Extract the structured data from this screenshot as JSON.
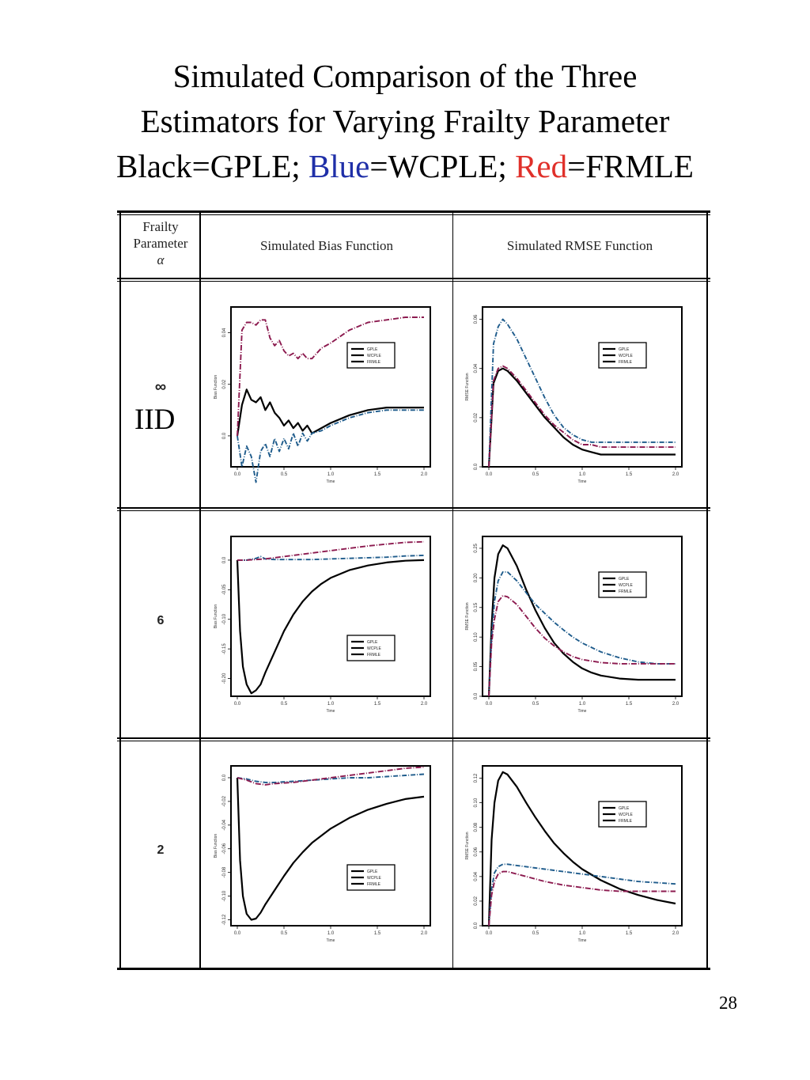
{
  "title": {
    "line1": "Simulated Comparison of the Three",
    "line2": "Estimators for Varying Frailty Parameter",
    "line3_a": "Black=GPLE; ",
    "line3_blue": "Blue",
    "line3_b": "=WCPLE; ",
    "line3_red": "Red",
    "line3_c": "=FRMLE"
  },
  "table": {
    "col1_header_l1": "Frailty",
    "col1_header_l2": "Parameter",
    "col1_header_l3": "α",
    "col2_header": "Simulated Bias Function",
    "col3_header": "Simulated RMSE Function",
    "rows": [
      {
        "label": "∞",
        "extra": "IID"
      },
      {
        "label": "6"
      },
      {
        "label": "2"
      }
    ]
  },
  "page_number": "28",
  "colors": {
    "gple": "#000000",
    "wcple": "#1f5c8c",
    "frmle": "#8c1a4f"
  },
  "chart_data": [
    {
      "type": "line",
      "panel": "bias",
      "row": "∞",
      "xlabel": "Time",
      "ylabel": "Bias Function",
      "xlim": [
        0,
        2
      ],
      "ylim": [
        -0.012,
        0.05
      ],
      "xticks": [
        "0.0",
        "0.5",
        "1.0",
        "1.5",
        "2.0"
      ],
      "yticks": [
        {
          "v": 0.0,
          "t": "0.0"
        },
        {
          "v": 0.02,
          "t": "0.02"
        },
        {
          "v": 0.04,
          "t": "0.04"
        }
      ],
      "legend": [
        "GPLE",
        "WCPLE",
        "FRMLE"
      ],
      "legend_pos": "top-right",
      "series": [
        {
          "key": "gple",
          "x": [
            0,
            0.05,
            0.1,
            0.15,
            0.2,
            0.25,
            0.3,
            0.35,
            0.4,
            0.45,
            0.5,
            0.55,
            0.6,
            0.65,
            0.7,
            0.75,
            0.8,
            0.9,
            1.0,
            1.2,
            1.4,
            1.6,
            1.8,
            2.0
          ],
          "y": [
            0.0,
            0.012,
            0.018,
            0.014,
            0.013,
            0.015,
            0.01,
            0.013,
            0.009,
            0.007,
            0.004,
            0.006,
            0.003,
            0.005,
            0.002,
            0.004,
            0.001,
            0.003,
            0.005,
            0.008,
            0.01,
            0.011,
            0.011,
            0.011
          ]
        },
        {
          "key": "wcple",
          "x": [
            0,
            0.05,
            0.1,
            0.15,
            0.2,
            0.25,
            0.3,
            0.35,
            0.4,
            0.45,
            0.5,
            0.55,
            0.6,
            0.65,
            0.7,
            0.75,
            0.8,
            0.9,
            1.0,
            1.2,
            1.4,
            1.6,
            1.8,
            2.0
          ],
          "y": [
            0.0,
            -0.012,
            -0.004,
            -0.008,
            -0.018,
            -0.006,
            -0.003,
            -0.008,
            -0.001,
            -0.006,
            -0.001,
            -0.005,
            0.001,
            -0.004,
            0.001,
            -0.002,
            0.001,
            0.002,
            0.004,
            0.007,
            0.009,
            0.01,
            0.01,
            0.01
          ]
        },
        {
          "key": "frmle",
          "x": [
            0,
            0.05,
            0.1,
            0.15,
            0.2,
            0.25,
            0.3,
            0.35,
            0.4,
            0.45,
            0.5,
            0.55,
            0.6,
            0.65,
            0.7,
            0.75,
            0.8,
            0.9,
            1.0,
            1.2,
            1.4,
            1.6,
            1.8,
            2.0
          ],
          "y": [
            0.0,
            0.041,
            0.044,
            0.044,
            0.043,
            0.045,
            0.045,
            0.038,
            0.035,
            0.037,
            0.033,
            0.031,
            0.032,
            0.03,
            0.032,
            0.03,
            0.03,
            0.034,
            0.036,
            0.041,
            0.044,
            0.045,
            0.046,
            0.046
          ]
        }
      ]
    },
    {
      "type": "line",
      "panel": "rmse",
      "row": "∞",
      "xlabel": "Time",
      "ylabel": "RMSE Function",
      "xlim": [
        0,
        2
      ],
      "ylim": [
        0,
        0.065
      ],
      "xticks": [
        "0.0",
        "0.5",
        "1.0",
        "1.5",
        "2.0"
      ],
      "yticks": [
        {
          "v": 0.0,
          "t": "0.0"
        },
        {
          "v": 0.02,
          "t": "0.02"
        },
        {
          "v": 0.04,
          "t": "0.04"
        },
        {
          "v": 0.06,
          "t": "0.06"
        }
      ],
      "legend": [
        "GPLE",
        "WCPLE",
        "FRMLE"
      ],
      "legend_pos": "top-right",
      "series": [
        {
          "key": "gple",
          "x": [
            0,
            0.05,
            0.1,
            0.15,
            0.2,
            0.3,
            0.4,
            0.5,
            0.6,
            0.7,
            0.8,
            0.9,
            1.0,
            1.1,
            1.2,
            1.3,
            1.4,
            1.6,
            1.8,
            2.0
          ],
          "y": [
            0,
            0.034,
            0.039,
            0.04,
            0.039,
            0.035,
            0.03,
            0.025,
            0.02,
            0.016,
            0.012,
            0.009,
            0.007,
            0.006,
            0.005,
            0.005,
            0.005,
            0.005,
            0.005,
            0.005
          ]
        },
        {
          "key": "wcple",
          "x": [
            0,
            0.05,
            0.1,
            0.15,
            0.2,
            0.3,
            0.4,
            0.5,
            0.6,
            0.7,
            0.8,
            0.9,
            1.0,
            1.1,
            1.2,
            1.3,
            1.4,
            1.6,
            1.8,
            2.0
          ],
          "y": [
            0,
            0.05,
            0.057,
            0.06,
            0.058,
            0.052,
            0.044,
            0.036,
            0.028,
            0.021,
            0.016,
            0.013,
            0.011,
            0.01,
            0.01,
            0.01,
            0.01,
            0.01,
            0.01,
            0.01
          ]
        },
        {
          "key": "frmle",
          "x": [
            0,
            0.05,
            0.1,
            0.15,
            0.2,
            0.3,
            0.4,
            0.5,
            0.6,
            0.7,
            0.8,
            0.9,
            1.0,
            1.1,
            1.2,
            1.3,
            1.4,
            1.6,
            1.8,
            2.0
          ],
          "y": [
            0,
            0.035,
            0.04,
            0.041,
            0.04,
            0.036,
            0.031,
            0.026,
            0.021,
            0.017,
            0.014,
            0.011,
            0.009,
            0.009,
            0.008,
            0.008,
            0.008,
            0.008,
            0.008,
            0.008
          ]
        }
      ]
    },
    {
      "type": "line",
      "panel": "bias",
      "row": "6",
      "xlabel": "Time",
      "ylabel": "Bias Function",
      "xlim": [
        0,
        2
      ],
      "ylim": [
        -0.23,
        0.04
      ],
      "xticks": [
        "0.0",
        "0.5",
        "1.0",
        "1.5",
        "2.0"
      ],
      "yticks": [
        {
          "v": 0.0,
          "t": "0.0"
        },
        {
          "v": -0.05,
          "t": "-0.05"
        },
        {
          "v": -0.1,
          "t": "-0.10"
        },
        {
          "v": -0.15,
          "t": "-0.15"
        },
        {
          "v": -0.2,
          "t": "-0.20"
        }
      ],
      "legend": [
        "GPLE",
        "WCPLE",
        "FRMLE"
      ],
      "legend_pos": "bottom-right",
      "series": [
        {
          "key": "gple",
          "x": [
            0,
            0.03,
            0.06,
            0.1,
            0.15,
            0.2,
            0.25,
            0.3,
            0.4,
            0.5,
            0.6,
            0.7,
            0.8,
            0.9,
            1.0,
            1.2,
            1.4,
            1.6,
            1.8,
            2.0
          ],
          "y": [
            0,
            -0.12,
            -0.18,
            -0.21,
            -0.225,
            -0.22,
            -0.21,
            -0.19,
            -0.155,
            -0.12,
            -0.092,
            -0.07,
            -0.053,
            -0.04,
            -0.03,
            -0.017,
            -0.009,
            -0.004,
            -0.001,
            0.0
          ]
        },
        {
          "key": "wcple",
          "x": [
            0,
            0.1,
            0.2,
            0.25,
            0.3,
            0.4,
            0.5,
            0.6,
            0.8,
            1.0,
            1.2,
            1.4,
            1.6,
            1.8,
            2.0
          ],
          "y": [
            0,
            0.0,
            0.003,
            0.006,
            0.002,
            0.001,
            0.001,
            0.001,
            0.001,
            0.002,
            0.003,
            0.004,
            0.005,
            0.007,
            0.008
          ]
        },
        {
          "key": "frmle",
          "x": [
            0,
            0.1,
            0.2,
            0.3,
            0.4,
            0.6,
            0.8,
            1.0,
            1.2,
            1.4,
            1.6,
            1.8,
            2.0
          ],
          "y": [
            0,
            0.0,
            0.001,
            0.002,
            0.004,
            0.008,
            0.012,
            0.016,
            0.02,
            0.024,
            0.027,
            0.03,
            0.031
          ]
        }
      ]
    },
    {
      "type": "line",
      "panel": "rmse",
      "row": "6",
      "xlabel": "Time",
      "ylabel": "RMSE Function",
      "xlim": [
        0,
        2
      ],
      "ylim": [
        0,
        0.27
      ],
      "xticks": [
        "0.0",
        "0.5",
        "1.0",
        "1.5",
        "2.0"
      ],
      "yticks": [
        {
          "v": 0.0,
          "t": "0.0"
        },
        {
          "v": 0.05,
          "t": "0.05"
        },
        {
          "v": 0.1,
          "t": "0.10"
        },
        {
          "v": 0.15,
          "t": "0.15"
        },
        {
          "v": 0.2,
          "t": "0.20"
        },
        {
          "v": 0.25,
          "t": "0.25"
        }
      ],
      "legend": [
        "GPLE",
        "WCPLE",
        "FRMLE"
      ],
      "legend_pos": "top-right",
      "series": [
        {
          "key": "gple",
          "x": [
            0,
            0.03,
            0.06,
            0.1,
            0.15,
            0.2,
            0.3,
            0.4,
            0.5,
            0.6,
            0.7,
            0.8,
            0.9,
            1.0,
            1.1,
            1.2,
            1.4,
            1.6,
            1.8,
            2.0
          ],
          "y": [
            0,
            0.12,
            0.2,
            0.24,
            0.255,
            0.25,
            0.22,
            0.18,
            0.145,
            0.115,
            0.09,
            0.072,
            0.058,
            0.047,
            0.04,
            0.035,
            0.03,
            0.028,
            0.028,
            0.028
          ]
        },
        {
          "key": "wcple",
          "x": [
            0,
            0.03,
            0.06,
            0.1,
            0.15,
            0.2,
            0.3,
            0.4,
            0.5,
            0.6,
            0.7,
            0.8,
            0.9,
            1.0,
            1.2,
            1.4,
            1.6,
            1.8,
            2.0
          ],
          "y": [
            0,
            0.1,
            0.16,
            0.195,
            0.21,
            0.21,
            0.195,
            0.175,
            0.155,
            0.14,
            0.125,
            0.112,
            0.1,
            0.09,
            0.075,
            0.065,
            0.058,
            0.055,
            0.055
          ]
        },
        {
          "key": "frmle",
          "x": [
            0,
            0.03,
            0.06,
            0.1,
            0.15,
            0.2,
            0.3,
            0.4,
            0.5,
            0.6,
            0.7,
            0.8,
            0.9,
            1.0,
            1.2,
            1.4,
            1.6,
            1.8,
            2.0
          ],
          "y": [
            0,
            0.09,
            0.13,
            0.16,
            0.17,
            0.168,
            0.155,
            0.135,
            0.115,
            0.098,
            0.085,
            0.075,
            0.067,
            0.062,
            0.057,
            0.055,
            0.055,
            0.055,
            0.055
          ]
        }
      ]
    },
    {
      "type": "line",
      "panel": "bias",
      "row": "2",
      "xlabel": "Time",
      "ylabel": "Bias Function",
      "xlim": [
        0,
        2
      ],
      "ylim": [
        -0.125,
        0.01
      ],
      "xticks": [
        "0.0",
        "0.5",
        "1.0",
        "1.5",
        "2.0"
      ],
      "yticks": [
        {
          "v": 0.0,
          "t": "0.0"
        },
        {
          "v": -0.02,
          "t": "-0.02"
        },
        {
          "v": -0.04,
          "t": "-0.04"
        },
        {
          "v": -0.06,
          "t": "-0.06"
        },
        {
          "v": -0.08,
          "t": "-0.08"
        },
        {
          "v": -0.1,
          "t": "-0.10"
        },
        {
          "v": -0.12,
          "t": "-0.12"
        }
      ],
      "legend": [
        "GPLE",
        "WCPLE",
        "FRMLE"
      ],
      "legend_pos": "bottom-right",
      "series": [
        {
          "key": "gple",
          "x": [
            0,
            0.03,
            0.06,
            0.1,
            0.15,
            0.2,
            0.25,
            0.3,
            0.4,
            0.5,
            0.6,
            0.7,
            0.8,
            0.9,
            1.0,
            1.2,
            1.4,
            1.6,
            1.8,
            2.0
          ],
          "y": [
            0,
            -0.07,
            -0.1,
            -0.115,
            -0.12,
            -0.119,
            -0.114,
            -0.107,
            -0.095,
            -0.083,
            -0.072,
            -0.063,
            -0.055,
            -0.049,
            -0.043,
            -0.034,
            -0.027,
            -0.022,
            -0.018,
            -0.016
          ]
        },
        {
          "key": "wcple",
          "x": [
            0,
            0.1,
            0.2,
            0.3,
            0.4,
            0.6,
            0.8,
            1.0,
            1.2,
            1.4,
            1.6,
            1.8,
            2.0
          ],
          "y": [
            0,
            -0.001,
            -0.003,
            -0.004,
            -0.004,
            -0.003,
            -0.002,
            -0.001,
            0.0,
            0.0,
            0.001,
            0.002,
            0.003
          ]
        },
        {
          "key": "frmle",
          "x": [
            0,
            0.1,
            0.2,
            0.3,
            0.4,
            0.6,
            0.8,
            1.0,
            1.2,
            1.4,
            1.6,
            1.8,
            2.0
          ],
          "y": [
            0,
            -0.002,
            -0.005,
            -0.006,
            -0.005,
            -0.004,
            -0.002,
            0.0,
            0.002,
            0.004,
            0.006,
            0.008,
            0.009
          ]
        }
      ]
    },
    {
      "type": "line",
      "panel": "rmse",
      "row": "2",
      "xlabel": "Time",
      "ylabel": "RMSE Function",
      "xlim": [
        0,
        2
      ],
      "ylim": [
        0,
        0.13
      ],
      "xticks": [
        "0.0",
        "0.5",
        "1.0",
        "1.5",
        "2.0"
      ],
      "yticks": [
        {
          "v": 0.0,
          "t": "0.0"
        },
        {
          "v": 0.02,
          "t": "0.02"
        },
        {
          "v": 0.04,
          "t": "0.04"
        },
        {
          "v": 0.06,
          "t": "0.06"
        },
        {
          "v": 0.08,
          "t": "0.08"
        },
        {
          "v": 0.1,
          "t": "0.10"
        },
        {
          "v": 0.12,
          "t": "0.12"
        }
      ],
      "legend": [
        "GPLE",
        "WCPLE",
        "FRMLE"
      ],
      "legend_pos": "top-right",
      "series": [
        {
          "key": "gple",
          "x": [
            0,
            0.03,
            0.06,
            0.1,
            0.15,
            0.2,
            0.3,
            0.4,
            0.5,
            0.6,
            0.7,
            0.8,
            0.9,
            1.0,
            1.2,
            1.4,
            1.6,
            1.8,
            2.0
          ],
          "y": [
            0,
            0.07,
            0.1,
            0.118,
            0.125,
            0.123,
            0.113,
            0.1,
            0.088,
            0.077,
            0.067,
            0.059,
            0.052,
            0.046,
            0.037,
            0.03,
            0.025,
            0.021,
            0.018
          ]
        },
        {
          "key": "wcple",
          "x": [
            0,
            0.03,
            0.06,
            0.1,
            0.15,
            0.2,
            0.3,
            0.4,
            0.5,
            0.6,
            0.8,
            1.0,
            1.2,
            1.4,
            1.6,
            1.8,
            2.0
          ],
          "y": [
            0,
            0.03,
            0.043,
            0.048,
            0.05,
            0.05,
            0.049,
            0.048,
            0.047,
            0.046,
            0.044,
            0.042,
            0.04,
            0.038,
            0.036,
            0.035,
            0.034
          ]
        },
        {
          "key": "frmle",
          "x": [
            0,
            0.03,
            0.06,
            0.1,
            0.15,
            0.2,
            0.3,
            0.4,
            0.5,
            0.6,
            0.8,
            1.0,
            1.2,
            1.4,
            1.6,
            1.8,
            2.0
          ],
          "y": [
            0,
            0.025,
            0.036,
            0.042,
            0.044,
            0.044,
            0.042,
            0.04,
            0.038,
            0.036,
            0.033,
            0.031,
            0.029,
            0.028,
            0.028,
            0.028,
            0.028
          ]
        }
      ]
    }
  ]
}
